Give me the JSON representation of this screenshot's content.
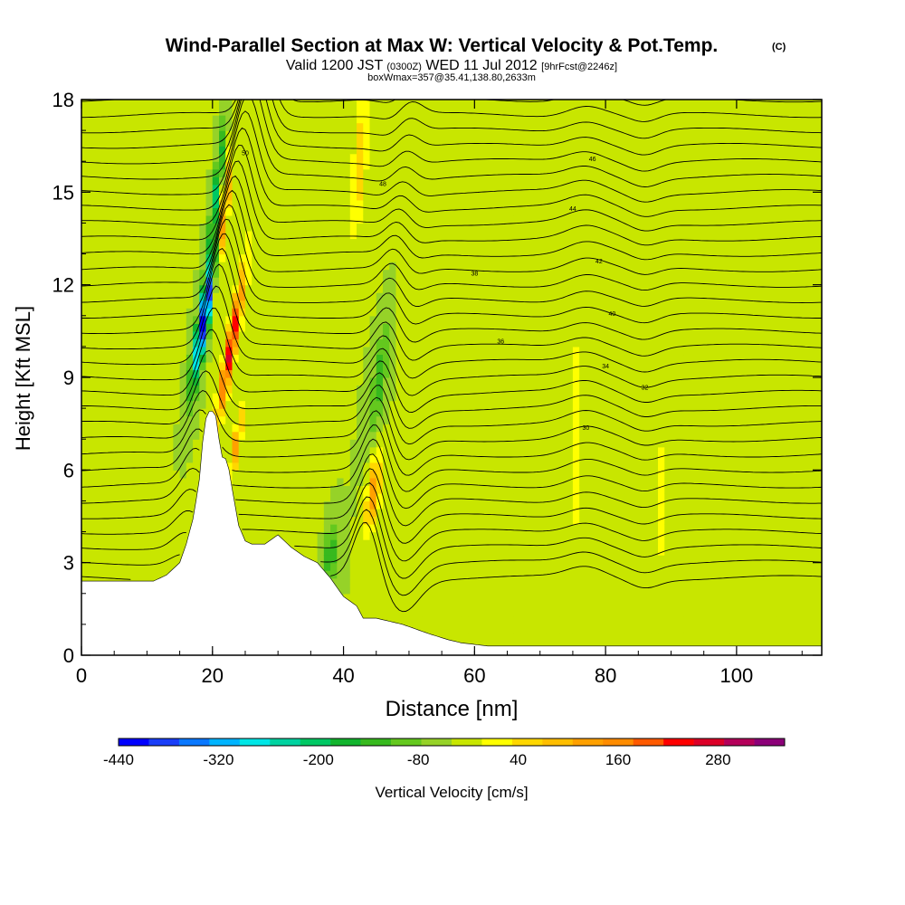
{
  "chart_data": {
    "type": "heatmap",
    "title": "Wind-Parallel Section at Max W: Vertical Velocity & Pot.Temp.",
    "title_mark": "(C)",
    "subtitle_parts": [
      "Valid 1200 JST",
      "(0300Z)",
      "WED 11 Jul 2012",
      "[9hrFcst@2246z]"
    ],
    "subtitle2": "boxWmax=357@35.41,138.80,2633m",
    "xlabel": "Distance [nm]",
    "ylabel": "Height [Kft MSL]",
    "xlim": [
      0,
      113
    ],
    "ylim": [
      0,
      18
    ],
    "x_ticks": [
      0,
      20,
      40,
      60,
      80,
      100
    ],
    "y_ticks": [
      0,
      3,
      6,
      9,
      12,
      15,
      18
    ],
    "colorbar": {
      "label": "Vertical Velocity [cm/s]",
      "range": [
        -440,
        360
      ],
      "step": 40,
      "tick_values": [
        -440,
        -320,
        -200,
        -80,
        40,
        160,
        280
      ],
      "tick_labels": [
        "-440",
        "-320",
        "-200",
        "-80",
        "40",
        "160",
        "280"
      ],
      "colors": [
        "#0000ff",
        "#1a3ef8",
        "#0a78ff",
        "#00b4ff",
        "#00e6e6",
        "#00d2a0",
        "#00c864",
        "#12b42e",
        "#37b91e",
        "#64c81e",
        "#96d228",
        "#c8e600",
        "#ffff00",
        "#ffd700",
        "#ffbe00",
        "#ffa000",
        "#ff8c00",
        "#ff5a00",
        "#ff0000",
        "#dc0028",
        "#b4005a",
        "#8c0078"
      ]
    },
    "contour_labels": [
      "50",
      "48",
      "46",
      "44",
      "42",
      "40",
      "38",
      "36",
      "34",
      "32",
      "30"
    ],
    "terrain_heights_kft": [
      [
        0,
        2.4
      ],
      [
        11,
        2.4
      ],
      [
        13,
        2.6
      ],
      [
        15,
        3.0
      ],
      [
        16,
        3.6
      ],
      [
        17,
        4.4
      ],
      [
        17.8,
        5.4
      ],
      [
        18.2,
        6.0
      ],
      [
        18.6,
        7.2
      ],
      [
        19.2,
        7.9
      ],
      [
        20.4,
        7.9
      ],
      [
        21,
        7.0
      ],
      [
        21.6,
        6.3
      ],
      [
        22.2,
        6.4
      ],
      [
        23,
        5.4
      ],
      [
        24,
        4.2
      ],
      [
        25,
        3.7
      ],
      [
        26,
        3.6
      ],
      [
        28,
        3.6
      ],
      [
        30,
        3.9
      ],
      [
        31,
        3.7
      ],
      [
        32,
        3.5
      ],
      [
        34,
        3.2
      ],
      [
        36,
        3.0
      ],
      [
        38,
        2.5
      ],
      [
        40,
        1.9
      ],
      [
        42,
        1.6
      ],
      [
        43,
        1.2
      ],
      [
        45,
        1.2
      ],
      [
        49,
        1.0
      ],
      [
        53,
        0.7
      ],
      [
        56,
        0.5
      ],
      [
        58,
        0.4
      ],
      [
        62,
        0.3
      ],
      [
        113,
        0.3
      ]
    ],
    "w_field": [
      {
        "x": 18.8,
        "y": 11.0,
        "sx": 0.9,
        "sy": 2.2,
        "tilt": 0.8,
        "value": -420
      },
      {
        "x": 20.6,
        "y": 15.0,
        "sx": 0.6,
        "sy": 2.5,
        "tilt": 0.55,
        "value": -180
      },
      {
        "x": 22.8,
        "y": 10.0,
        "sx": 0.8,
        "sy": 2.4,
        "tilt": 0.8,
        "value": 330
      },
      {
        "x": 21.6,
        "y": 14.0,
        "sx": 0.6,
        "sy": 2.2,
        "tilt": 0.55,
        "value": 250
      },
      {
        "x": 23.6,
        "y": 6.8,
        "sx": 0.6,
        "sy": 1.3,
        "tilt": 0.8,
        "value": 180
      },
      {
        "x": 44.5,
        "y": 5.2,
        "sx": 1.0,
        "sy": 1.2,
        "tilt": 0.5,
        "value": 200
      },
      {
        "x": 45.5,
        "y": 9.0,
        "sx": 1.1,
        "sy": 2.0,
        "tilt": 0.6,
        "value": -100
      },
      {
        "x": 38.0,
        "y": 3.2,
        "sx": 1.2,
        "sy": 1.0,
        "tilt": 0.3,
        "value": -110
      },
      {
        "x": 42.5,
        "y": 16.0,
        "sx": 1.0,
        "sy": 2.5,
        "tilt": 0.3,
        "value": 120
      },
      {
        "x": 33.0,
        "y": 2.5,
        "sx": 3.0,
        "sy": 2.0,
        "tilt": 0.0,
        "value": 40
      },
      {
        "x": 60.0,
        "y": 2.0,
        "sx": 3.0,
        "sy": 3.0,
        "tilt": 0.0,
        "value": 20
      },
      {
        "x": 75.5,
        "y": 7.0,
        "sx": 1.2,
        "sy": 6.0,
        "tilt": 0.0,
        "value": 50
      },
      {
        "x": 88.5,
        "y": 5.0,
        "sx": 1.2,
        "sy": 5.0,
        "tilt": 0.0,
        "value": 45
      },
      {
        "x": 101.0,
        "y": 3.0,
        "sx": 1.5,
        "sy": 4.0,
        "tilt": 0.0,
        "value": 40
      },
      {
        "x": 110.0,
        "y": 6.0,
        "sx": 2.5,
        "sy": 6.0,
        "tilt": 0.0,
        "value": 35
      },
      {
        "x": 8.0,
        "y": 8.0,
        "sx": 4.0,
        "sy": 4.0,
        "tilt": 0.0,
        "value": 35
      },
      {
        "x": 60.0,
        "y": 13.0,
        "sx": 8.0,
        "sy": 3.5,
        "tilt": 0.0,
        "value": 35
      },
      {
        "x": 30.0,
        "y": 12.0,
        "sx": 5.0,
        "sy": 5.0,
        "tilt": 0.0,
        "value": 30
      }
    ]
  }
}
